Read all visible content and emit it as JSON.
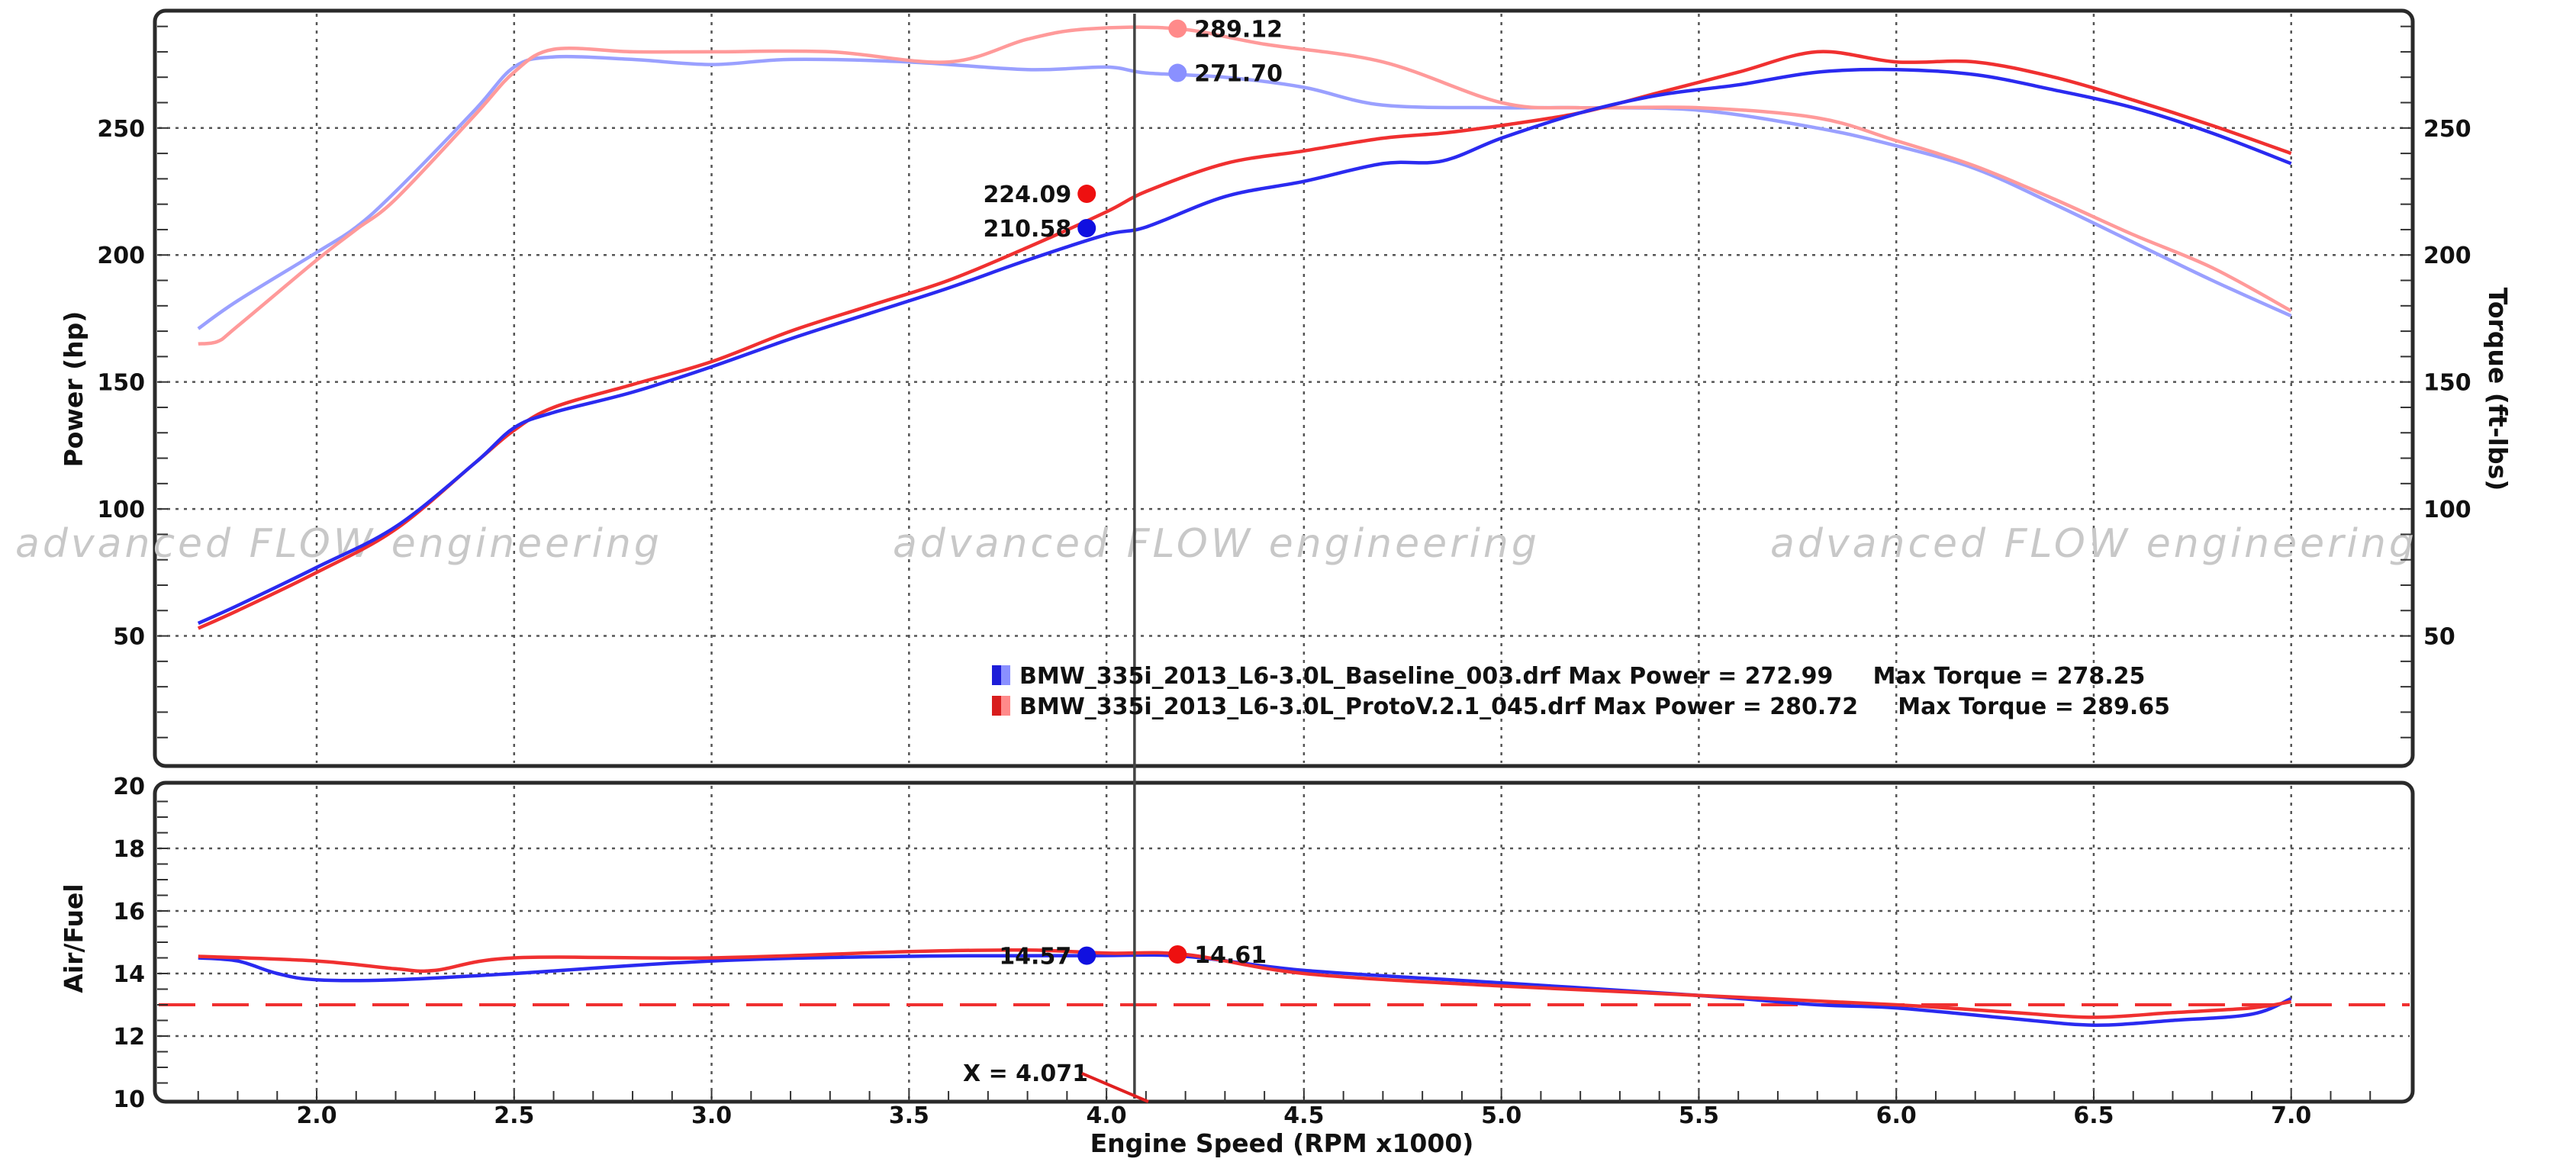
{
  "watermark": "advanced FLOW engineering",
  "chart_data": [
    {
      "type": "line",
      "name": "power-torque",
      "x_ticks": [
        2.0,
        2.5,
        3.0,
        3.5,
        4.0,
        4.5,
        5.0,
        5.5,
        6.0,
        6.5,
        7.0
      ],
      "xlim": [
        1.6,
        7.3
      ],
      "ylim": [
        0,
        295
      ],
      "y_ticks": [
        50,
        100,
        150,
        200,
        250
      ],
      "ylabel": "Power (hp)",
      "ylabel_right": "Torque (ft-lbs)",
      "grid": true,
      "colors": {
        "baseline_power": "#2a2af0",
        "proto_power": "#f03030",
        "baseline_torque": "#9aa0ff",
        "proto_torque": "#ff9a9a"
      },
      "series": [
        {
          "key": "baseline_power",
          "x": [
            1.7,
            1.8,
            2.0,
            2.2,
            2.4,
            2.5,
            2.6,
            2.8,
            3.0,
            3.2,
            3.4,
            3.6,
            3.8,
            4.0,
            4.1,
            4.3,
            4.5,
            4.7,
            4.85,
            5.0,
            5.2,
            5.4,
            5.6,
            5.8,
            6.0,
            6.2,
            6.4,
            6.6,
            6.8,
            7.0
          ],
          "y": [
            55,
            62,
            77,
            93,
            118,
            132,
            138,
            146,
            156,
            167,
            177,
            187,
            198,
            208,
            211,
            223,
            229,
            236,
            237,
            246,
            256,
            263,
            267,
            272,
            273,
            271,
            265,
            258,
            248,
            236
          ]
        },
        {
          "key": "proto_power",
          "x": [
            1.7,
            1.8,
            2.0,
            2.2,
            2.4,
            2.5,
            2.6,
            2.8,
            3.0,
            3.2,
            3.4,
            3.6,
            3.8,
            4.0,
            4.1,
            4.3,
            4.5,
            4.7,
            4.85,
            5.0,
            5.2,
            5.4,
            5.6,
            5.8,
            6.0,
            6.2,
            6.4,
            6.6,
            6.8,
            7.0
          ],
          "y": [
            53,
            60,
            75,
            92,
            118,
            131,
            140,
            149,
            158,
            170,
            180,
            190,
            203,
            217,
            225,
            236,
            241,
            246,
            248,
            251,
            256,
            264,
            272,
            280,
            276,
            276,
            270,
            261,
            251,
            240
          ]
        },
        {
          "key": "baseline_torque",
          "x": [
            1.7,
            1.8,
            2.0,
            2.1,
            2.2,
            2.4,
            2.5,
            2.6,
            2.8,
            3.0,
            3.2,
            3.5,
            3.8,
            4.0,
            4.1,
            4.3,
            4.5,
            4.7,
            5.0,
            5.2,
            5.5,
            5.8,
            6.0,
            6.2,
            6.4,
            6.6,
            6.8,
            7.0
          ],
          "y": [
            171,
            182,
            201,
            211,
            225,
            257,
            274,
            278,
            277,
            275,
            277,
            276,
            273,
            274,
            271.7,
            270,
            266,
            259,
            258,
            258,
            257,
            250,
            243,
            234,
            220,
            205,
            190,
            176
          ]
        },
        {
          "key": "proto_torque",
          "x": [
            1.7,
            1.75,
            1.8,
            2.0,
            2.1,
            2.2,
            2.4,
            2.5,
            2.6,
            2.8,
            3.0,
            3.3,
            3.6,
            3.8,
            3.95,
            4.18,
            4.4,
            4.7,
            5.0,
            5.2,
            5.5,
            5.8,
            6.0,
            6.2,
            6.4,
            6.6,
            6.8,
            7.0
          ],
          "y": [
            165,
            166,
            172,
            198,
            210,
            222,
            255,
            272,
            281,
            280,
            280,
            280,
            276,
            285,
            289,
            289.12,
            283,
            276,
            260,
            258,
            258,
            254,
            245,
            235,
            222,
            208,
            195,
            178
          ]
        }
      ],
      "markers": [
        {
          "series": "baseline_power",
          "x": 3.95,
          "y": 210.58,
          "label": "210.58"
        },
        {
          "series": "proto_power",
          "x": 3.95,
          "y": 224.09,
          "label": "224.09"
        },
        {
          "series": "baseline_torque",
          "x": 4.18,
          "y": 271.7,
          "label": "271.70"
        },
        {
          "series": "proto_torque",
          "x": 4.18,
          "y": 289.12,
          "label": "289.12"
        }
      ],
      "cursor_x": 4.071,
      "legend": [
        {
          "color_dark": "#1d1dd8",
          "color_light": "#8a90ff",
          "text": "BMW_335i_2013_L6-3.0L_Baseline_003.drf Max Power = 272.99     Max Torque = 278.25"
        },
        {
          "color_dark": "#d81d1d",
          "color_light": "#ff8a8a",
          "text": "BMW_335i_2013_L6-3.0L_ProtoV.2.1_045.drf Max Power = 280.72     Max Torque = 289.65"
        }
      ]
    },
    {
      "type": "line",
      "name": "air-fuel",
      "xlabel": "Engine Speed (RPM x1000)",
      "ylabel": "Air/Fuel",
      "x_ticks": [
        2.0,
        2.5,
        3.0,
        3.5,
        4.0,
        4.5,
        5.0,
        5.5,
        6.0,
        6.5,
        7.0
      ],
      "xlim": [
        1.6,
        7.3
      ],
      "ylim": [
        10,
        20
      ],
      "y_ticks": [
        10,
        12,
        14,
        16,
        18,
        20
      ],
      "grid": true,
      "reference_line": {
        "y": 13.0,
        "color": "#f03030",
        "dashed": true
      },
      "series": [
        {
          "key": "baseline_afr",
          "color": "#2a2af0",
          "x": [
            1.7,
            1.8,
            1.9,
            2.0,
            2.2,
            2.5,
            3.0,
            3.5,
            3.95,
            4.2,
            4.5,
            5.0,
            5.5,
            5.8,
            6.0,
            6.3,
            6.5,
            6.7,
            6.9,
            7.0
          ],
          "y": [
            14.5,
            14.4,
            14.0,
            13.8,
            13.8,
            14.0,
            14.4,
            14.55,
            14.57,
            14.55,
            14.1,
            13.7,
            13.3,
            13.0,
            12.9,
            12.55,
            12.35,
            12.5,
            12.7,
            13.2
          ]
        },
        {
          "key": "proto_afr",
          "color": "#f03030",
          "x": [
            1.7,
            2.0,
            2.2,
            2.3,
            2.5,
            3.0,
            3.5,
            3.8,
            4.0,
            4.2,
            4.5,
            5.0,
            5.5,
            6.0,
            6.3,
            6.5,
            6.7,
            6.9,
            7.0
          ],
          "y": [
            14.55,
            14.4,
            14.15,
            14.1,
            14.5,
            14.5,
            14.7,
            14.75,
            14.65,
            14.61,
            14.0,
            13.6,
            13.3,
            13.0,
            12.75,
            12.6,
            12.75,
            12.9,
            13.1
          ]
        }
      ],
      "markers": [
        {
          "series": "baseline_afr",
          "x": 3.95,
          "y": 14.57,
          "label": "14.57"
        },
        {
          "series": "proto_afr",
          "x": 4.18,
          "y": 14.61,
          "label": "14.61"
        }
      ],
      "cursor_label": "X = 4.071"
    }
  ]
}
